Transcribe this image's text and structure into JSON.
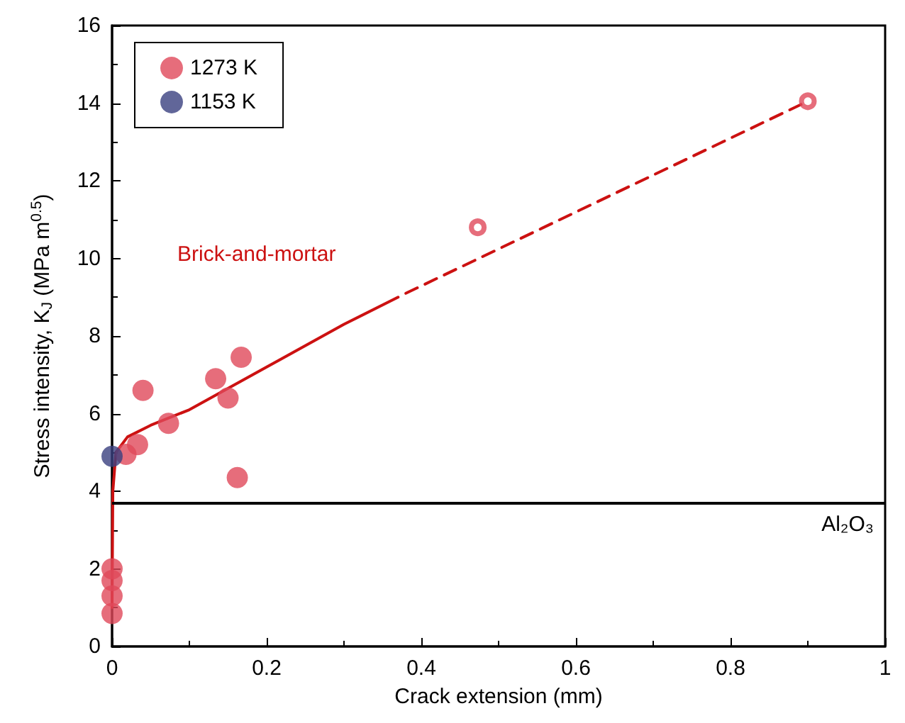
{
  "chart_data": {
    "type": "scatter",
    "xlabel": "Crack extension (mm)",
    "ylabel": "Stress intensity, K$_{J}$ (MPa m$^{0.5}$)",
    "xlim": [
      0,
      1
    ],
    "xticks": [
      0,
      0.2,
      0.4,
      0.6,
      0.8,
      1.0
    ],
    "ylim": [
      0,
      16
    ],
    "yticks": [
      0,
      2,
      4,
      6,
      8,
      10,
      12,
      14,
      16
    ],
    "grid": false,
    "legend": "top left",
    "marker": "circle",
    "series": [
      {
        "name": "1273 K",
        "color": "#e0485a",
        "x": [
          0,
          0,
          0,
          0,
          0.018,
          0.033,
          0.04,
          0.073,
          0.134,
          0.15,
          0.162,
          0.167
        ],
        "values": [
          0.85,
          1.3,
          1.7,
          2.0,
          4.95,
          5.2,
          6.6,
          5.75,
          6.9,
          6.4,
          4.35,
          7.45
        ]
      },
      {
        "name": "1153 K",
        "color": "#3a4080",
        "x": [
          0
        ],
        "values": [
          4.9
        ]
      },
      {
        "color": "#e0485a",
        "x": [
          0.473,
          0.9
        ],
        "values": [
          10.8,
          14.05
        ]
      },
      {
        "type": "line",
        "color": "#cc1111",
        "line_style": "solid",
        "marker": "none",
        "x": [
          0,
          0.001,
          0.005,
          0.02,
          0.05,
          0.1,
          0.2,
          0.3,
          0.37
        ],
        "values": [
          1.0,
          4.0,
          5.0,
          5.4,
          5.7,
          6.1,
          7.2,
          8.3,
          9.0
        ]
      },
      {
        "type": "line",
        "color": "#cc1111",
        "line_style": "dashed",
        "marker": "none",
        "x": [
          0.38,
          0.9
        ],
        "values": [
          9.1,
          14.05
        ]
      }
    ],
    "ref_lines": [
      {
        "axis": "y",
        "value": 3.7,
        "label": "Al₂O₃",
        "color": "#000000"
      }
    ],
    "annotations": [
      "Brick-and-mortar"
    ]
  }
}
